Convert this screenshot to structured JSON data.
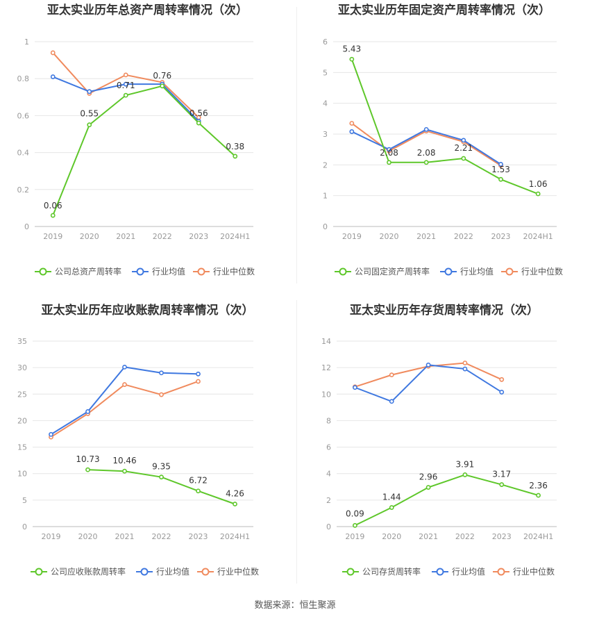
{
  "colors": {
    "company": "#5ec72a",
    "avg": "#3f78e0",
    "median": "#f08a5d",
    "grid": "#e6e6e6",
    "axis": "#999999",
    "text": "#333333"
  },
  "source": "数据来源：恒生聚源",
  "chart_data": [
    {
      "type": "line",
      "title": "亚太实业历年总资产周转率情况（次）",
      "categories": [
        "2019",
        "2020",
        "2021",
        "2022",
        "2023",
        "2024H1"
      ],
      "ylim": [
        0,
        1
      ],
      "yticks": [
        "0",
        "0.2",
        "0.4",
        "0.6",
        "0.8",
        "1"
      ],
      "ytick_values": [
        0,
        0.2,
        0.4,
        0.6,
        0.8,
        1
      ],
      "grid": true,
      "legend": "bottom",
      "series": [
        {
          "name": "公司总资产周转率",
          "key": "company",
          "values": [
            0.06,
            0.55,
            0.71,
            0.76,
            0.56,
            0.38
          ],
          "labels": [
            "0.06",
            "0.55",
            "0.71",
            "0.76",
            "0.56",
            "0.38"
          ]
        },
        {
          "name": "行业均值",
          "key": "avg",
          "values": [
            0.81,
            0.73,
            0.77,
            0.77,
            0.57,
            null
          ]
        },
        {
          "name": "行业中位数",
          "key": "median",
          "values": [
            0.94,
            0.72,
            0.82,
            0.78,
            0.59,
            null
          ]
        }
      ]
    },
    {
      "type": "line",
      "title": "亚太实业历年固定资产周转率情况（次）",
      "categories": [
        "2019",
        "2020",
        "2021",
        "2022",
        "2023",
        "2024H1"
      ],
      "ylim": [
        0,
        6
      ],
      "yticks": [
        "0",
        "1",
        "2",
        "3",
        "4",
        "5",
        "6"
      ],
      "ytick_values": [
        0,
        1,
        2,
        3,
        4,
        5,
        6
      ],
      "grid": true,
      "legend": "bottom",
      "series": [
        {
          "name": "公司固定资产周转率",
          "key": "company",
          "values": [
            5.43,
            2.08,
            2.08,
            2.21,
            1.53,
            1.06
          ],
          "labels": [
            "5.43",
            "2.08",
            "2.08",
            "2.21",
            "1.53",
            "1.06"
          ]
        },
        {
          "name": "行业均值",
          "key": "avg",
          "values": [
            3.08,
            2.5,
            3.15,
            2.8,
            2.02,
            null
          ]
        },
        {
          "name": "行业中位数",
          "key": "median",
          "values": [
            3.35,
            2.45,
            3.1,
            2.75,
            1.98,
            null
          ]
        }
      ]
    },
    {
      "type": "line",
      "title": "亚太实业历年应收账款周转率情况（次）",
      "categories": [
        "2019",
        "2020",
        "2021",
        "2022",
        "2023",
        "2024H1"
      ],
      "ylim": [
        0,
        35
      ],
      "yticks": [
        "0",
        "5",
        "10",
        "15",
        "20",
        "25",
        "30",
        "35"
      ],
      "ytick_values": [
        0,
        5,
        10,
        15,
        20,
        25,
        30,
        35
      ],
      "grid": true,
      "legend": "bottom",
      "series": [
        {
          "name": "公司应收账款周转率",
          "key": "company",
          "values": [
            null,
            10.73,
            10.46,
            9.35,
            6.72,
            4.26
          ],
          "labels": [
            null,
            "10.73",
            "10.46",
            "9.35",
            "6.72",
            "4.26"
          ]
        },
        {
          "name": "行业均值",
          "key": "avg",
          "values": [
            17.4,
            21.7,
            30.1,
            29.0,
            28.8,
            null
          ]
        },
        {
          "name": "行业中位数",
          "key": "median",
          "values": [
            16.9,
            21.3,
            26.8,
            24.9,
            27.4,
            null
          ]
        }
      ]
    },
    {
      "type": "line",
      "title": "亚太实业历年存货周转率情况（次）",
      "categories": [
        "2019",
        "2020",
        "2021",
        "2022",
        "2023",
        "2024H1"
      ],
      "ylim": [
        0,
        14
      ],
      "yticks": [
        "0",
        "2",
        "4",
        "6",
        "8",
        "10",
        "12",
        "14"
      ],
      "ytick_values": [
        0,
        2,
        4,
        6,
        8,
        10,
        12,
        14
      ],
      "grid": true,
      "legend": "bottom",
      "series": [
        {
          "name": "公司存货周转率",
          "key": "company",
          "values": [
            0.09,
            1.44,
            2.96,
            3.91,
            3.17,
            2.36
          ],
          "labels": [
            "0.09",
            "1.44",
            "2.96",
            "3.91",
            "3.17",
            "2.36"
          ]
        },
        {
          "name": "行业均值",
          "key": "avg",
          "values": [
            10.5,
            9.45,
            12.2,
            11.9,
            10.15,
            null
          ]
        },
        {
          "name": "行业中位数",
          "key": "median",
          "values": [
            10.55,
            11.45,
            12.1,
            12.35,
            11.1,
            null
          ]
        }
      ]
    }
  ]
}
